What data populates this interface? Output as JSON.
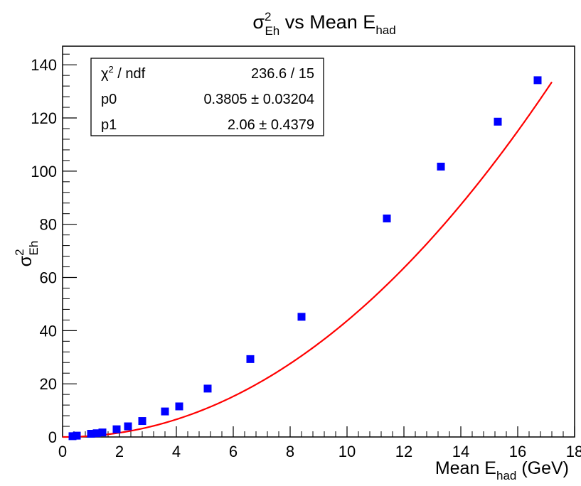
{
  "chart_data": {
    "type": "scatter",
    "title": {
      "sym": "σ",
      "sup": "2",
      "sub": "Eh",
      "rest": " vs Mean E",
      "sub2": "had"
    },
    "xlabel": {
      "text": "Mean E",
      "sub": "had",
      "rest": " (GeV)"
    },
    "ylabel": {
      "sym": "σ",
      "sup": "2",
      "sub": "Eh"
    },
    "xlim": [
      0,
      18
    ],
    "ylim": [
      0,
      147
    ],
    "x_ticks": [
      "0",
      "2",
      "4",
      "6",
      "8",
      "10",
      "12",
      "14",
      "16",
      "18"
    ],
    "y_ticks": [
      "0",
      "20",
      "40",
      "60",
      "80",
      "100",
      "120",
      "140"
    ],
    "series": [
      {
        "marker": "square",
        "color": "#0000ff",
        "points": [
          {
            "x": 0.35,
            "y": 0.3
          },
          {
            "x": 0.5,
            "y": 0.5
          },
          {
            "x": 1.0,
            "y": 1.2
          },
          {
            "x": 1.2,
            "y": 1.4
          },
          {
            "x": 1.4,
            "y": 1.7
          },
          {
            "x": 1.9,
            "y": 2.9
          },
          {
            "x": 2.3,
            "y": 4.0
          },
          {
            "x": 2.8,
            "y": 6.0
          },
          {
            "x": 3.6,
            "y": 9.6
          },
          {
            "x": 4.1,
            "y": 11.5
          },
          {
            "x": 5.1,
            "y": 18.2
          },
          {
            "x": 6.6,
            "y": 29.3
          },
          {
            "x": 8.4,
            "y": 45.2
          },
          {
            "x": 11.4,
            "y": 82.2
          },
          {
            "x": 13.3,
            "y": 101.7
          },
          {
            "x": 15.3,
            "y": 118.6
          },
          {
            "x": 16.7,
            "y": 134.2
          }
        ]
      }
    ],
    "fit": {
      "function": "p0*x^p1",
      "p0": 0.3805,
      "p1": 2.06,
      "color": "#ff0000",
      "x_range": [
        0,
        17.2
      ]
    },
    "grid": false,
    "stats_box": {
      "rows": [
        {
          "label_sym": "χ",
          "label_sup": "2",
          "label_rest": " / ndf",
          "value": "236.6 / 15"
        },
        {
          "label": "p0",
          "value": "0.3805 ± 0.03204"
        },
        {
          "label": "p1",
          "value": "2.06 ± 0.4379"
        }
      ],
      "placement": "top-left"
    }
  }
}
